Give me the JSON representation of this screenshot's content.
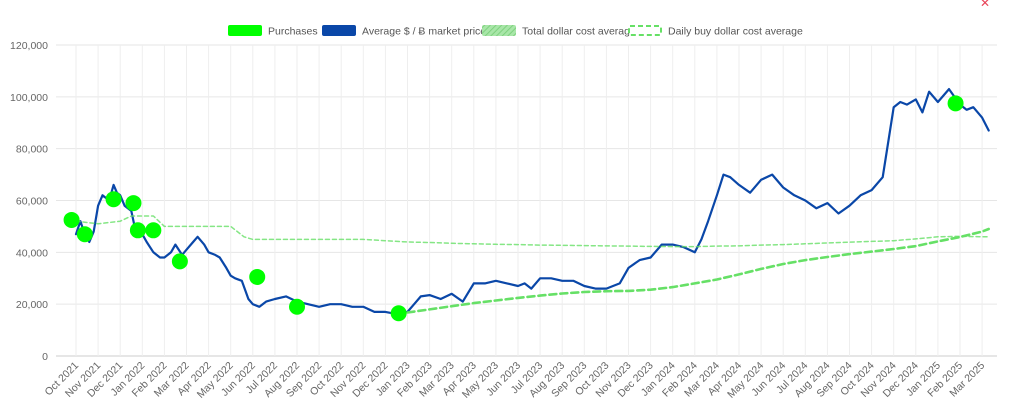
{
  "chart_data": {
    "type": "line",
    "title": "",
    "xlabel": "",
    "ylabel": "",
    "ylim": [
      0,
      120000
    ],
    "y_ticks": [
      0,
      20000,
      40000,
      60000,
      80000,
      100000,
      120000
    ],
    "y_tick_labels": [
      "0",
      "20,000",
      "40,000",
      "60,000",
      "80,000",
      "100,000",
      "120,000"
    ],
    "x_tick_labels": [
      "Oct 2021",
      "Nov 2021",
      "Dec 2021",
      "Jan 2022",
      "Feb 2022",
      "Mar 2022",
      "Apr 2022",
      "May 2022",
      "Jun 2022",
      "Jul 2022",
      "Aug 2022",
      "Sep 2022",
      "Oct 2022",
      "Nov 2022",
      "Dec 2022",
      "Jan 2023",
      "Feb 2023",
      "Mar 2023",
      "Apr 2023",
      "May 2023",
      "Jun 2023",
      "Jul 2023",
      "Aug 2023",
      "Sep 2023",
      "Oct 2023",
      "Nov 2023",
      "Dec 2023",
      "Jan 2024",
      "Feb 2024",
      "Mar 2024",
      "Apr 2024",
      "May 2024",
      "Jun 2024",
      "Jul 2024",
      "Aug 2024",
      "Sep 2024",
      "Oct 2024",
      "Nov 2024",
      "Dec 2024",
      "Jan 2025",
      "Feb 2025",
      "Mar 2025"
    ],
    "grid": true,
    "legend_position": "top-center",
    "legend": [
      {
        "label": "Purchases",
        "color": "#00ff00",
        "style": "filled-box"
      },
      {
        "label": "Average $ / Ƀ market price",
        "color": "#0a47a8",
        "style": "filled-box"
      },
      {
        "label": "Total dollar cost average",
        "color": "#8fdc8f",
        "style": "hatched-box"
      },
      {
        "label": "Daily buy dollar cost average",
        "color": "#66e066",
        "style": "dashed-box"
      }
    ],
    "series": [
      {
        "name": "Average $ / Ƀ market price",
        "color": "#0a47a8",
        "x": [
          0,
          0.2,
          0.4,
          0.6,
          0.8,
          1.0,
          1.2,
          1.5,
          1.7,
          1.85,
          2.0,
          2.2,
          2.5,
          2.7,
          3.0,
          3.2,
          3.5,
          3.8,
          4.0,
          4.3,
          4.5,
          4.8,
          5.0,
          5.3,
          5.5,
          5.8,
          6.0,
          6.3,
          6.5,
          6.8,
          7.0,
          7.2,
          7.5,
          7.8,
          8.0,
          8.3,
          8.6,
          9.0,
          9.5,
          10.0,
          10.5,
          11.0,
          11.5,
          12.0,
          12.5,
          13.0,
          13.5,
          14.0,
          14.3,
          14.6,
          15.0,
          15.3,
          15.6,
          16.0,
          16.5,
          17.0,
          17.5,
          18.0,
          18.5,
          19.0,
          19.5,
          20.0,
          20.3,
          20.6,
          21.0,
          21.5,
          22.0,
          22.5,
          23.0,
          23.5,
          24.0,
          24.3,
          24.6,
          25.0,
          25.5,
          26.0,
          26.5,
          27.0,
          27.5,
          28.0,
          28.3,
          28.6,
          29.0,
          29.3,
          29.6,
          30.0,
          30.5,
          31.0,
          31.5,
          32.0,
          32.5,
          33.0,
          33.5,
          34.0,
          34.5,
          35.0,
          35.5,
          36.0,
          36.5,
          37.0,
          37.3,
          37.6,
          38.0,
          38.3,
          38.6,
          39.0,
          39.5,
          40.0,
          40.3,
          40.6,
          41.0,
          41.3
        ],
        "values": [
          47000,
          52000,
          47000,
          44000,
          48000,
          58000,
          62000,
          60000,
          66000,
          63000,
          62000,
          58000,
          56000,
          48000,
          47000,
          44000,
          40000,
          38000,
          38000,
          40000,
          43000,
          39000,
          41000,
          44000,
          46000,
          43000,
          40000,
          39000,
          38000,
          34000,
          31000,
          30000,
          29000,
          22000,
          20000,
          19000,
          21000,
          22000,
          23000,
          21000,
          20000,
          19000,
          20000,
          20000,
          19000,
          19000,
          17000,
          17000,
          16500,
          16600,
          17000,
          20000,
          23000,
          23500,
          22000,
          24000,
          21000,
          28000,
          28000,
          29000,
          28000,
          27000,
          28000,
          26000,
          30000,
          30000,
          29000,
          29000,
          27000,
          26000,
          26000,
          27000,
          28000,
          34000,
          37000,
          38000,
          43000,
          43000,
          42000,
          40000,
          45000,
          52000,
          62000,
          70000,
          69000,
          66000,
          63000,
          68000,
          70000,
          65000,
          62000,
          60000,
          57000,
          59000,
          55000,
          58000,
          62000,
          64000,
          69000,
          96000,
          98000,
          97000,
          99000,
          94000,
          102000,
          98000,
          103000,
          97000,
          95000,
          96000,
          92000,
          87000
        ]
      },
      {
        "name": "Total dollar cost average",
        "color": "#66e066",
        "x": [
          0,
          1.0,
          2.0,
          2.5,
          3.5,
          4.0,
          5.0,
          6.0,
          7.0,
          7.6,
          8.0,
          9.0,
          10.0,
          11.0,
          12.0,
          13.0,
          14.0,
          15.0,
          16.0,
          17.0,
          18.0,
          19.0,
          20.0,
          21.0,
          22.0,
          23.0,
          24.0,
          25.0,
          26.0,
          27.0,
          28.0,
          29.0,
          30.0,
          31.0,
          32.0,
          33.0,
          34.0,
          35.0,
          36.0,
          37.0,
          38.0,
          39.0,
          40.0,
          41.0,
          41.3
        ],
        "values": [
          52000,
          51000,
          52000,
          54000,
          54000,
          50000,
          50000,
          50000,
          50000,
          46000,
          45000,
          45000,
          45000,
          45000,
          45000,
          45000,
          44500,
          44000,
          43800,
          43500,
          43300,
          43100,
          43000,
          42800,
          42700,
          42600,
          42500,
          42400,
          42300,
          42200,
          42200,
          42400,
          42500,
          42800,
          43000,
          43300,
          43600,
          43900,
          44200,
          44500,
          45200,
          46000,
          46200,
          46000,
          46000
        ]
      },
      {
        "name": "Daily buy dollar cost average",
        "color": "#66e066",
        "x": [
          14.5,
          15.0,
          16.0,
          17.0,
          18.0,
          19.0,
          20.0,
          21.0,
          22.0,
          23.0,
          24.0,
          25.0,
          26.0,
          27.0,
          28.0,
          29.0,
          30.0,
          31.0,
          32.0,
          33.0,
          34.0,
          35.0,
          36.0,
          37.0,
          38.0,
          39.0,
          40.0,
          41.0,
          41.3
        ],
        "values": [
          16600,
          16800,
          18000,
          19200,
          20400,
          21400,
          22400,
          23300,
          24100,
          24700,
          25000,
          25100,
          25600,
          26600,
          28000,
          29500,
          31500,
          33600,
          35500,
          37000,
          38200,
          39300,
          40300,
          41300,
          42400,
          44200,
          45900,
          48000,
          49000
        ]
      }
    ],
    "purchases": [
      {
        "label": "Oct 2021",
        "x": -0.2,
        "value": 52500
      },
      {
        "label": "Oct 2021",
        "x": 0.4,
        "value": 47000
      },
      {
        "label": "Nov 2021",
        "x": 1.7,
        "value": 60500
      },
      {
        "label": "Dec 2021",
        "x": 2.6,
        "value": 59000
      },
      {
        "label": "Dec 2021",
        "x": 2.8,
        "value": 48500
      },
      {
        "label": "Jan 2022",
        "x": 3.5,
        "value": 48500
      },
      {
        "label": "Feb 2022",
        "x": 4.7,
        "value": 36500
      },
      {
        "label": "Jun 2022",
        "x": 8.2,
        "value": 30500
      },
      {
        "label": "Jul 2022",
        "x": 10.0,
        "value": 19000
      },
      {
        "label": "Dec 2022",
        "x": 14.6,
        "value": 16500
      },
      {
        "label": "Jan 2025",
        "x": 39.8,
        "value": 97500
      }
    ]
  },
  "corner_mark": "✕"
}
